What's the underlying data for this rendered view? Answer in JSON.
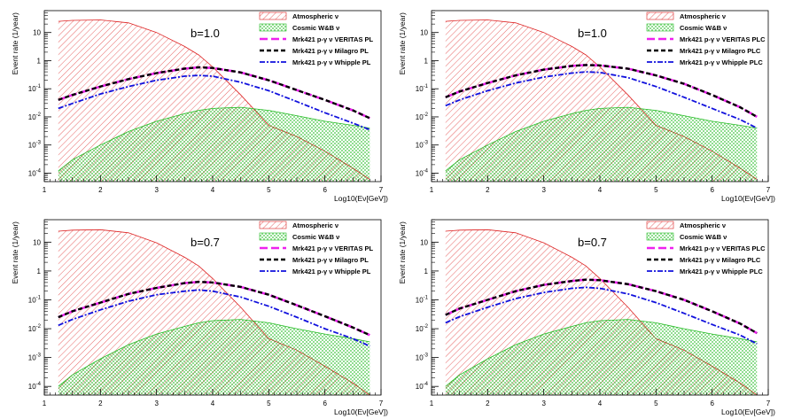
{
  "chart_data": [
    {
      "type": "area",
      "panel": "top-left",
      "title": "",
      "annotation": "b=1.0",
      "xlabel": "Log10(Eν[GeV])",
      "ylabel": "Event rate (1/year)",
      "xlim": [
        1,
        7
      ],
      "ylim": [
        5e-05,
        60
      ],
      "yscale": "log",
      "xticks": [
        "1",
        "2",
        "3",
        "4",
        "5",
        "6",
        "7"
      ],
      "yticks": [
        "10^{-4}",
        "10^{-3}",
        "10^{-2}",
        "10^{-1}",
        "1",
        "10"
      ],
      "legend": [
        "Atmospheric ν",
        "Cosmic W&B ν",
        "Mrk421 p-γ ν VERITAS PL",
        "Mrk421 p-γ ν Milagro PL",
        "Mrk421 p-γ ν Whipple PL"
      ],
      "x": [
        1.25,
        1.5,
        2.0,
        2.5,
        3.0,
        3.5,
        3.75,
        4.0,
        4.5,
        5.0,
        5.5,
        6.0,
        6.5,
        6.8
      ],
      "series": [
        {
          "name": "Atmospheric ν",
          "style": "atm",
          "values": [
            25,
            27,
            28,
            22,
            10,
            3.2,
            1.6,
            0.6,
            0.06,
            0.005,
            0.002,
            0.0006,
            0.00015,
            6e-05
          ]
        },
        {
          "name": "Cosmic W&B ν",
          "style": "cos",
          "values": [
            0.00012,
            0.0003,
            0.001,
            0.003,
            0.007,
            0.013,
            0.017,
            0.02,
            0.022,
            0.017,
            0.011,
            0.007,
            0.005,
            0.004
          ]
        },
        {
          "name": "Mrk421 p-γ ν VERITAS PL",
          "style": "veritas",
          "values": [
            0.04,
            0.06,
            0.12,
            0.22,
            0.36,
            0.52,
            0.58,
            0.55,
            0.38,
            0.2,
            0.09,
            0.04,
            0.017,
            0.009
          ]
        },
        {
          "name": "Mrk421 p-γ ν Milagro PL",
          "style": "milagro",
          "values": [
            0.04,
            0.06,
            0.12,
            0.22,
            0.36,
            0.52,
            0.58,
            0.55,
            0.38,
            0.2,
            0.09,
            0.04,
            0.017,
            0.009
          ]
        },
        {
          "name": "Mrk421 p-γ ν Whipple PL",
          "style": "whipple",
          "values": [
            0.02,
            0.03,
            0.065,
            0.12,
            0.2,
            0.28,
            0.3,
            0.28,
            0.17,
            0.085,
            0.035,
            0.014,
            0.006,
            0.0035
          ]
        }
      ]
    },
    {
      "type": "area",
      "panel": "top-right",
      "title": "",
      "annotation": "b=1.0",
      "xlabel": "Log10(Eν[GeV])",
      "ylabel": "Event rate (1/year)",
      "xlim": [
        1,
        7
      ],
      "ylim": [
        5e-05,
        60
      ],
      "yscale": "log",
      "xticks": [
        "1",
        "2",
        "3",
        "4",
        "5",
        "6",
        "7"
      ],
      "yticks": [
        "10^{-4}",
        "10^{-3}",
        "10^{-2}",
        "10^{-1}",
        "1",
        "10"
      ],
      "legend": [
        "Atmospheric ν",
        "Cosmic W&B ν",
        "Mrk421 p-γ ν VERITAS PLC",
        "Mrk421 p-γ ν Milagro PLC",
        "Mrk421 p-γ ν Whipple PLC"
      ],
      "x": [
        1.25,
        1.5,
        2.0,
        2.5,
        3.0,
        3.5,
        3.75,
        4.0,
        4.5,
        5.0,
        5.5,
        6.0,
        6.5,
        6.8
      ],
      "series": [
        {
          "name": "Atmospheric ν",
          "style": "atm",
          "values": [
            25,
            27,
            28,
            22,
            10,
            3.2,
            1.6,
            0.6,
            0.06,
            0.005,
            0.002,
            0.0006,
            0.00015,
            6e-05
          ]
        },
        {
          "name": "Cosmic W&B ν",
          "style": "cos",
          "values": [
            0.00012,
            0.0003,
            0.001,
            0.003,
            0.007,
            0.013,
            0.017,
            0.02,
            0.022,
            0.017,
            0.011,
            0.007,
            0.005,
            0.004
          ]
        },
        {
          "name": "Mrk421 p-γ ν VERITAS PLC",
          "style": "veritas",
          "values": [
            0.05,
            0.08,
            0.16,
            0.3,
            0.48,
            0.65,
            0.7,
            0.68,
            0.52,
            0.3,
            0.15,
            0.06,
            0.022,
            0.01
          ]
        },
        {
          "name": "Mrk421 p-γ ν Milagro PLC",
          "style": "milagro",
          "values": [
            0.05,
            0.08,
            0.16,
            0.3,
            0.48,
            0.65,
            0.7,
            0.68,
            0.52,
            0.3,
            0.15,
            0.06,
            0.022,
            0.01
          ]
        },
        {
          "name": "Mrk421 p-γ ν Whipple PLC",
          "style": "whipple",
          "values": [
            0.025,
            0.04,
            0.085,
            0.16,
            0.26,
            0.36,
            0.4,
            0.38,
            0.25,
            0.12,
            0.05,
            0.02,
            0.008,
            0.004
          ]
        }
      ]
    },
    {
      "type": "area",
      "panel": "bottom-left",
      "title": "",
      "annotation": "b=0.7",
      "xlabel": "Log10(Eν[GeV])",
      "ylabel": "Event rate (1/year)",
      "xlim": [
        1,
        7
      ],
      "ylim": [
        5e-05,
        60
      ],
      "yscale": "log",
      "xticks": [
        "1",
        "2",
        "3",
        "4",
        "5",
        "6",
        "7"
      ],
      "yticks": [
        "10^{-4}",
        "10^{-3}",
        "10^{-2}",
        "10^{-1}",
        "1",
        "10"
      ],
      "legend": [
        "Atmospheric ν",
        "Cosmic W&B ν",
        "Mrk421 p-γ ν VERITAS PL",
        "Mrk421 p-γ ν Milagro PL",
        "Mrk421 p-γ ν Whipple PL"
      ],
      "x": [
        1.25,
        1.5,
        2.0,
        2.5,
        3.0,
        3.5,
        3.75,
        4.0,
        4.5,
        5.0,
        5.5,
        6.0,
        6.5,
        6.8
      ],
      "series": [
        {
          "name": "Atmospheric ν",
          "style": "atm",
          "values": [
            24,
            26,
            27,
            21,
            9.5,
            3.0,
            1.5,
            0.55,
            0.055,
            0.0045,
            0.0018,
            0.0005,
            0.00013,
            5e-05
          ]
        },
        {
          "name": "Cosmic W&B ν",
          "style": "cos",
          "values": [
            0.0001,
            0.00025,
            0.0009,
            0.0028,
            0.0065,
            0.012,
            0.016,
            0.019,
            0.021,
            0.016,
            0.01,
            0.0065,
            0.0045,
            0.0035
          ]
        },
        {
          "name": "Mrk421 p-γ ν VERITAS PL",
          "style": "veritas",
          "values": [
            0.025,
            0.04,
            0.08,
            0.16,
            0.26,
            0.38,
            0.42,
            0.4,
            0.28,
            0.15,
            0.065,
            0.027,
            0.011,
            0.006
          ]
        },
        {
          "name": "Mrk421 p-γ ν Milagro PL",
          "style": "milagro",
          "values": [
            0.025,
            0.04,
            0.08,
            0.16,
            0.26,
            0.38,
            0.42,
            0.4,
            0.28,
            0.15,
            0.065,
            0.027,
            0.011,
            0.006
          ]
        },
        {
          "name": "Mrk421 p-γ ν Whipple PL",
          "style": "whipple",
          "values": [
            0.013,
            0.021,
            0.045,
            0.09,
            0.15,
            0.2,
            0.22,
            0.2,
            0.125,
            0.06,
            0.025,
            0.01,
            0.0045,
            0.0025
          ]
        }
      ]
    },
    {
      "type": "area",
      "panel": "bottom-right",
      "title": "",
      "annotation": "b=0.7",
      "xlabel": "Log10(Eν[GeV])",
      "ylabel": "Event rate (1/year)",
      "xlim": [
        1,
        7
      ],
      "ylim": [
        5e-05,
        60
      ],
      "yscale": "log",
      "xticks": [
        "1",
        "2",
        "3",
        "4",
        "5",
        "6",
        "7"
      ],
      "yticks": [
        "10^{-4}",
        "10^{-3}",
        "10^{-2}",
        "10^{-1}",
        "1",
        "10"
      ],
      "legend": [
        "Atmospheric ν",
        "Cosmic W&B ν",
        "Mrk421 p-γ ν VERITAS PLC",
        "Mrk421 p-γ ν Milagro PLC",
        "Mrk421 p-γ ν Whipple PLC"
      ],
      "x": [
        1.25,
        1.5,
        2.0,
        2.5,
        3.0,
        3.5,
        3.75,
        4.0,
        4.5,
        5.0,
        5.5,
        6.0,
        6.5,
        6.8
      ],
      "series": [
        {
          "name": "Atmospheric ν",
          "style": "atm",
          "values": [
            24,
            26,
            27,
            21,
            9.5,
            3.0,
            1.5,
            0.55,
            0.055,
            0.0045,
            0.0018,
            0.0005,
            0.00013,
            5e-05
          ]
        },
        {
          "name": "Cosmic W&B ν",
          "style": "cos",
          "values": [
            0.0001,
            0.00025,
            0.0009,
            0.0028,
            0.0065,
            0.012,
            0.016,
            0.019,
            0.021,
            0.016,
            0.01,
            0.0065,
            0.0045,
            0.0035
          ]
        },
        {
          "name": "Mrk421 p-γ ν VERITAS PLC",
          "style": "veritas",
          "values": [
            0.03,
            0.05,
            0.1,
            0.2,
            0.33,
            0.45,
            0.5,
            0.48,
            0.35,
            0.2,
            0.1,
            0.04,
            0.015,
            0.007
          ]
        },
        {
          "name": "Mrk421 p-γ ν Milagro PLC",
          "style": "milagro",
          "values": [
            0.03,
            0.05,
            0.1,
            0.2,
            0.33,
            0.45,
            0.5,
            0.48,
            0.35,
            0.2,
            0.1,
            0.04,
            0.015,
            0.007
          ]
        },
        {
          "name": "Mrk421 p-γ ν Whipple PLC",
          "style": "whipple",
          "values": [
            0.016,
            0.026,
            0.055,
            0.11,
            0.18,
            0.25,
            0.27,
            0.25,
            0.16,
            0.08,
            0.034,
            0.014,
            0.006,
            0.003
          ]
        }
      ]
    }
  ],
  "colors": {
    "atmospheric": "#dd2222",
    "cosmic": "#22bb22",
    "veritas": "#ee22ee",
    "milagro": "#000000",
    "whipple": "#1111dd",
    "axis": "#000000"
  }
}
